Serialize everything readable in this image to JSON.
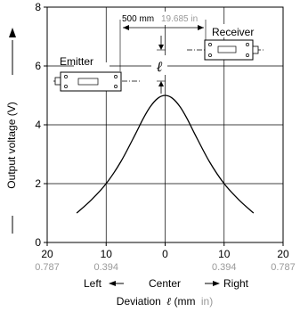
{
  "chart_data": {
    "type": "line",
    "ylabel": "Output voltage (V)",
    "xlabel_prefix": "Deviation",
    "xlabel_var": "ℓ",
    "xlabel_units_mm": "(mm",
    "xlabel_units_in": "in)",
    "direction": {
      "left": "Left",
      "center": "Center",
      "right": "Right"
    },
    "xlim": [
      -20,
      20
    ],
    "ylim": [
      0,
      8
    ],
    "x_ticks": [
      {
        "value": -20,
        "mm": "20",
        "in": "0.787"
      },
      {
        "value": -10,
        "mm": "10",
        "in": "0.394"
      },
      {
        "value": 0,
        "mm": "0",
        "in": ""
      },
      {
        "value": 10,
        "mm": "10",
        "in": "0.394"
      },
      {
        "value": 20,
        "mm": "20",
        "in": "0.787"
      }
    ],
    "y_ticks": [
      {
        "value": 0,
        "label": "0"
      },
      {
        "value": 2,
        "label": "2"
      },
      {
        "value": 4,
        "label": "4"
      },
      {
        "value": 6,
        "label": "6"
      },
      {
        "value": 8,
        "label": "8"
      }
    ],
    "grid": true,
    "series": [
      {
        "x": [
          -15,
          -12.5,
          -10,
          -7.5,
          -5,
          -3.75,
          -2.5,
          -1.25,
          0,
          1.25,
          2.5,
          3.75,
          5,
          7.5,
          10,
          12.5,
          15
        ],
        "y": [
          1.0,
          1.45,
          2.0,
          2.75,
          3.7,
          4.2,
          4.62,
          4.9,
          5.0,
          4.9,
          4.62,
          4.2,
          3.7,
          2.75,
          2.0,
          1.45,
          1.0
        ]
      }
    ]
  },
  "diagram": {
    "distance_mm": "500 mm",
    "distance_in": "19.685 in",
    "emitter_label": "Emitter",
    "receiver_label": "Receiver",
    "deviation_symbol": "ℓ"
  },
  "colors": {
    "line": "#000000",
    "grid": "#000000",
    "inch_text": "#999999"
  }
}
